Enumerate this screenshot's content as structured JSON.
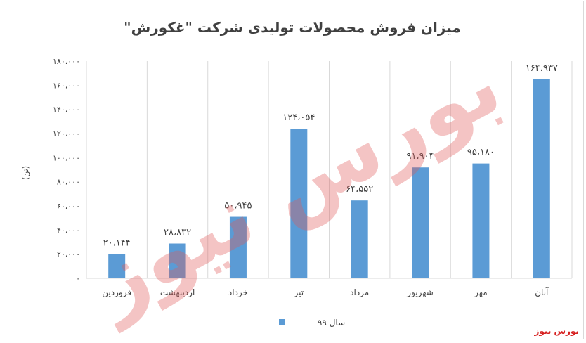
{
  "chart_data": {
    "type": "bar",
    "title": "میزان فروش محصولات تولیدی شرکت \"غکورش\"",
    "ylabel": "(تن)",
    "xlabel": "",
    "categories": [
      "فروردین",
      "اردیبهشت",
      "خرداد",
      "تیر",
      "مرداد",
      "شهریور",
      "مهر",
      "آبان"
    ],
    "series": [
      {
        "name": "سال ۹۹",
        "color": "#5b9bd5",
        "values": [
          20144,
          28832,
          50945,
          124054,
          64552,
          91904,
          95180,
          164937
        ],
        "value_labels": [
          "۲۰،۱۴۴",
          "۲۸،۸۳۲",
          "۵۰،۹۴۵",
          "۱۲۴،۰۵۴",
          "۶۴،۵۵۲",
          "۹۱،۹۰۴",
          "۹۵،۱۸۰",
          "۱۶۴،۹۳۷"
        ]
      }
    ],
    "ylim": [
      0,
      180000
    ],
    "yticks": [
      0,
      20000,
      40000,
      60000,
      80000,
      100000,
      120000,
      140000,
      160000,
      180000
    ],
    "ytick_labels": [
      "۰",
      "۲۰،۰۰۰",
      "۴۰،۰۰۰",
      "۶۰،۰۰۰",
      "۸۰،۰۰۰",
      "۱۰۰،۰۰۰",
      "۱۲۰،۰۰۰",
      "۱۴۰،۰۰۰",
      "۱۶۰،۰۰۰",
      "۱۸۰،۰۰۰"
    ],
    "grid": "vertical",
    "legend": "bottom-center"
  },
  "watermark_text": "بورس نیوز",
  "source_label": "بورس نیوز",
  "colors": {
    "bar": "#5b9bd5",
    "watermark": "#e05a5a",
    "source": "#d62020",
    "grid": "#d9d9d9"
  }
}
